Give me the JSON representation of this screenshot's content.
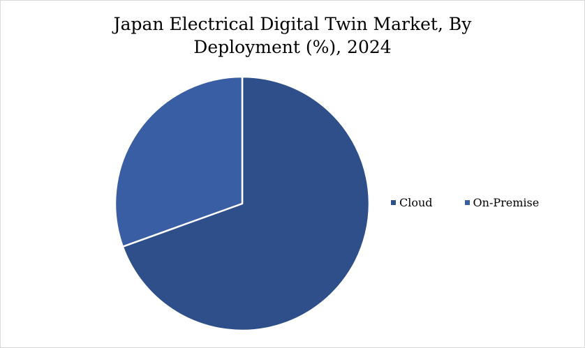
{
  "chart_data": {
    "type": "pie",
    "title": "Japan Electrical Digital Twin Market, By Deployment (%), 2024",
    "title_lines": [
      "Japan Electrical Digital Twin Market, By",
      "Deployment (%), 2024"
    ],
    "categories": [
      "Cloud",
      "On-Premise"
    ],
    "values": [
      69.5,
      30.5
    ],
    "colors": [
      "#2f4f8a",
      "#3a5ea3"
    ],
    "legend_position": "right",
    "data_labels": false
  }
}
